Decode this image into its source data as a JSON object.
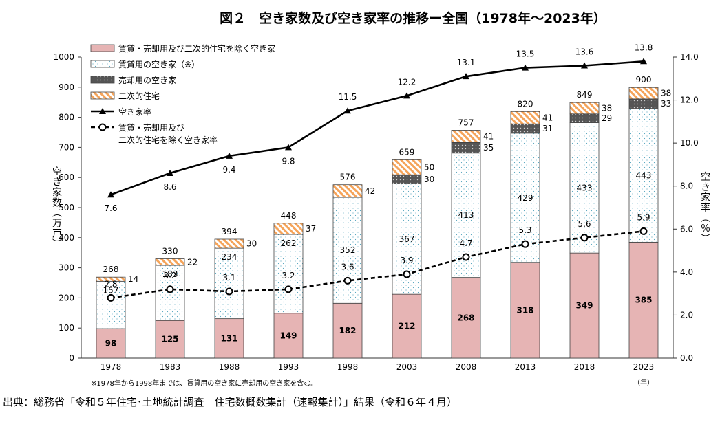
{
  "chart_data": {
    "type": "bar",
    "stacked": true,
    "title": "図２　空き家数及び空き家率の推移ー全国（1978年～2023年）",
    "categories": [
      "1978",
      "1983",
      "1988",
      "1993",
      "1998",
      "2003",
      "2008",
      "2013",
      "2018",
      "2023"
    ],
    "x_unit": "（年）",
    "y_left": {
      "label": "空き家数（万戸）",
      "min": 0,
      "max": 1000,
      "step": 100,
      "ticks": [
        "0",
        "100",
        "200",
        "300",
        "400",
        "500",
        "600",
        "700",
        "800",
        "900",
        "1000"
      ]
    },
    "y_right": {
      "label": "空き家率（％）",
      "min": 0,
      "max": 14,
      "step": 2,
      "ticks": [
        "0.0",
        "2.0",
        "4.0",
        "6.0",
        "8.0",
        "10.0",
        "12.0",
        "14.0"
      ]
    },
    "series": [
      {
        "name": "賃貸・売却用及び二次的住宅を除く空き家",
        "color": "#e6b4b4",
        "values": [
          98,
          125,
          131,
          149,
          182,
          212,
          268,
          318,
          349,
          385
        ],
        "labels": [
          "98",
          "125",
          "131",
          "149",
          "182",
          "212",
          "268",
          "318",
          "349",
          "385"
        ]
      },
      {
        "name": "賃貸用の空き家（※）",
        "color": "#ffffff",
        "values": [
          157,
          183,
          234,
          262,
          352,
          367,
          413,
          429,
          433,
          443
        ],
        "labels": [
          "157",
          "183",
          "234",
          "262",
          "352",
          "367",
          "413",
          "429",
          "433",
          "443"
        ]
      },
      {
        "name": "売却用の空き家",
        "color": "#555555",
        "values": [
          0,
          0,
          0,
          0,
          0,
          30,
          35,
          31,
          29,
          33
        ],
        "labels": [
          "",
          "",
          "",
          "",
          "",
          "30",
          "35",
          "31",
          "29",
          "33"
        ]
      },
      {
        "name": "二次的住宅",
        "color": "#f5a45a",
        "values": [
          14,
          22,
          30,
          37,
          42,
          50,
          41,
          41,
          38,
          38
        ],
        "labels": [
          "14",
          "22",
          "30",
          "37",
          "42",
          "50",
          "41",
          "41",
          "38",
          "38"
        ]
      }
    ],
    "totals": [
      "268",
      "330",
      "394",
      "448",
      "576",
      "659",
      "757",
      "820",
      "849",
      "900"
    ],
    "lines": [
      {
        "name": "空き家率",
        "style": "solid",
        "marker": "triangle",
        "values": [
          7.6,
          8.6,
          9.4,
          9.8,
          11.5,
          12.2,
          13.1,
          13.5,
          13.6,
          13.8
        ],
        "labels": [
          "7.6",
          "8.6",
          "9.4",
          "9.8",
          "11.5",
          "12.2",
          "13.1",
          "13.5",
          "13.6",
          "13.8"
        ]
      },
      {
        "name_line1": "賃貸・売却用及び",
        "name_line2": "二次的住宅を除く空き家率",
        "style": "dashed",
        "marker": "circle",
        "values": [
          2.8,
          3.2,
          3.1,
          3.2,
          3.6,
          3.9,
          4.7,
          5.3,
          5.6,
          5.9
        ],
        "labels": [
          "2.8",
          "3.2",
          "3.1",
          "3.2",
          "3.6",
          "3.9",
          "4.7",
          "5.3",
          "5.6",
          "5.9"
        ]
      }
    ],
    "footnote": "※1978年から1998年までは、賃貸用の空き家に売却用の空き家を含む。"
  },
  "source": "出典：総務省「令和５年住宅･土地統計調査　住宅数概数集計（速報集計）」結果（令和６年４月）"
}
